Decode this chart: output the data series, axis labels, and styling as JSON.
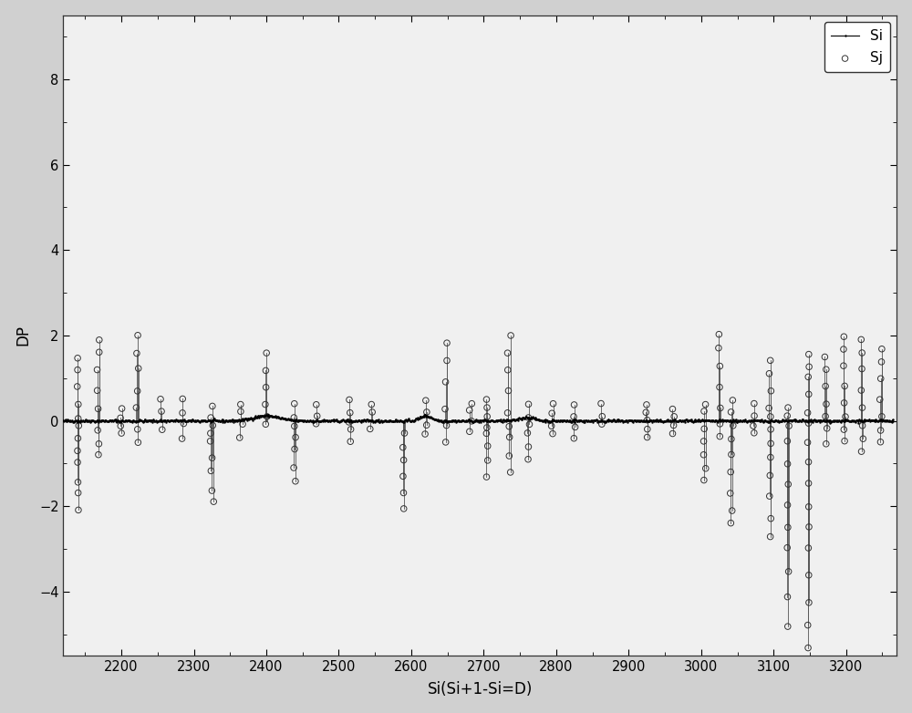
{
  "title": "",
  "xlabel": "Si(Si+1-Si=D)",
  "ylabel": "DP",
  "xlim": [
    2120,
    3270
  ],
  "ylim": [
    -5.5,
    9.5
  ],
  "yticks": [
    -4,
    -2,
    0,
    2,
    4,
    6,
    8
  ],
  "xticks": [
    2200,
    2300,
    2400,
    2500,
    2600,
    2700,
    2800,
    2900,
    3000,
    3100,
    3200
  ],
  "background_color": "#d0d0d0",
  "plot_bg_color": "#f0f0f0",
  "si_color": "#000000",
  "sj_line_color": "#888888",
  "sj_marker_color": "#333333",
  "legend_si": "Si",
  "legend_sj": "Sj",
  "seed": 42,
  "spike_data": [
    [
      2140,
      4,
      [
        1.5,
        1.2,
        0.8,
        0.4,
        0.1,
        -0.1,
        -0.4,
        -0.7,
        -1.0,
        -1.4,
        -1.7,
        -2.1
      ]
    ],
    [
      2168,
      4,
      [
        1.9,
        1.6,
        1.2,
        0.7,
        0.3,
        -0.2,
        -0.5,
        -0.8
      ]
    ],
    [
      2200,
      4,
      [
        0.3,
        0.1,
        -0.1,
        -0.3
      ]
    ],
    [
      2222,
      4,
      [
        2.0,
        1.6,
        1.2,
        0.7,
        0.3,
        -0.2,
        -0.5
      ]
    ],
    [
      2255,
      4,
      [
        0.5,
        0.2,
        -0.2
      ]
    ],
    [
      2285,
      4,
      [
        0.5,
        0.2,
        -0.1,
        -0.4
      ]
    ],
    [
      2325,
      6,
      [
        0.3,
        0.1,
        -0.1,
        -0.3,
        -0.5,
        -0.9,
        -1.2,
        -1.6,
        -1.9
      ]
    ],
    [
      2365,
      6,
      [
        0.4,
        0.2,
        -0.1,
        -0.4
      ]
    ],
    [
      2400,
      4,
      [
        1.6,
        1.2,
        0.8,
        0.4,
        0.1,
        -0.1
      ]
    ],
    [
      2438,
      6,
      [
        0.4,
        0.1,
        -0.1,
        -0.4,
        -0.7,
        -1.1,
        -1.4
      ]
    ],
    [
      2470,
      4,
      [
        0.4,
        0.1,
        -0.1
      ]
    ],
    [
      2515,
      4,
      [
        0.5,
        0.2,
        0.0,
        -0.2,
        -0.5
      ]
    ],
    [
      2545,
      6,
      [
        0.4,
        0.2,
        -0.2
      ]
    ],
    [
      2590,
      4,
      [
        -0.3,
        -0.6,
        -0.9,
        -1.3,
        -1.7,
        -2.1
      ]
    ],
    [
      2620,
      4,
      [
        0.5,
        0.2,
        -0.1,
        -0.3
      ]
    ],
    [
      2648,
      4,
      [
        1.8,
        1.4,
        0.9,
        0.3,
        -0.1,
        -0.5
      ]
    ],
    [
      2682,
      6,
      [
        0.4,
        0.2,
        0.0,
        -0.2
      ]
    ],
    [
      2705,
      4,
      [
        0.5,
        0.3,
        0.1,
        -0.1,
        -0.3,
        -0.6,
        -0.9,
        -1.3
      ]
    ],
    [
      2735,
      6,
      [
        2.0,
        1.6,
        1.2,
        0.7,
        0.2,
        -0.1,
        -0.4,
        -0.8,
        -1.2
      ]
    ],
    [
      2762,
      4,
      [
        0.4,
        0.1,
        -0.1,
        -0.3,
        -0.6,
        -0.9
      ]
    ],
    [
      2795,
      4,
      [
        0.4,
        0.2,
        -0.1,
        -0.3
      ]
    ],
    [
      2825,
      6,
      [
        0.4,
        0.1,
        -0.1,
        -0.4
      ]
    ],
    [
      2862,
      4,
      [
        0.4,
        0.1,
        -0.1
      ]
    ],
    [
      2925,
      6,
      [
        0.4,
        0.2,
        0.0,
        -0.2,
        -0.4
      ]
    ],
    [
      2962,
      4,
      [
        0.3,
        0.1,
        -0.1,
        -0.3
      ]
    ],
    [
      3005,
      6,
      [
        0.4,
        0.2,
        -0.2,
        -0.5,
        -0.8,
        -1.1,
        -1.4
      ]
    ],
    [
      3025,
      4,
      [
        2.0,
        1.7,
        1.3,
        0.8,
        0.3,
        -0.1,
        -0.4
      ]
    ],
    [
      3042,
      6,
      [
        0.5,
        0.2,
        -0.1,
        -0.4,
        -0.8,
        -1.2,
        -1.7,
        -2.1,
        -2.4
      ]
    ],
    [
      3072,
      4,
      [
        0.4,
        0.1,
        -0.1,
        -0.3
      ]
    ],
    [
      3095,
      4,
      [
        1.4,
        1.1,
        0.7,
        0.3,
        0.1,
        -0.2,
        -0.5,
        -0.9,
        -1.3,
        -1.8,
        -2.3,
        -2.7
      ]
    ],
    [
      3120,
      3,
      [
        0.3,
        0.1,
        -0.1,
        -0.5,
        -1.0,
        -1.5,
        -2.0,
        -2.5,
        -3.0,
        -3.5,
        -4.1,
        -4.8
      ]
    ],
    [
      3148,
      3,
      [
        1.6,
        1.3,
        1.0,
        0.6,
        0.2,
        -0.1,
        -0.5,
        -1.0,
        -1.5,
        -2.0,
        -2.5,
        -3.0,
        -3.6,
        -4.2,
        -4.8,
        -5.3
      ]
    ],
    [
      3172,
      6,
      [
        1.5,
        1.2,
        0.8,
        0.4,
        0.1,
        -0.2,
        -0.5
      ]
    ],
    [
      3198,
      4,
      [
        2.0,
        1.7,
        1.3,
        0.8,
        0.4,
        0.1,
        -0.2,
        -0.5
      ]
    ],
    [
      3222,
      4,
      [
        1.9,
        1.6,
        1.2,
        0.7,
        0.3,
        -0.1,
        -0.4,
        -0.7
      ]
    ],
    [
      3248,
      4,
      [
        1.7,
        1.4,
        1.0,
        0.5,
        0.1,
        -0.2,
        -0.5
      ]
    ]
  ]
}
